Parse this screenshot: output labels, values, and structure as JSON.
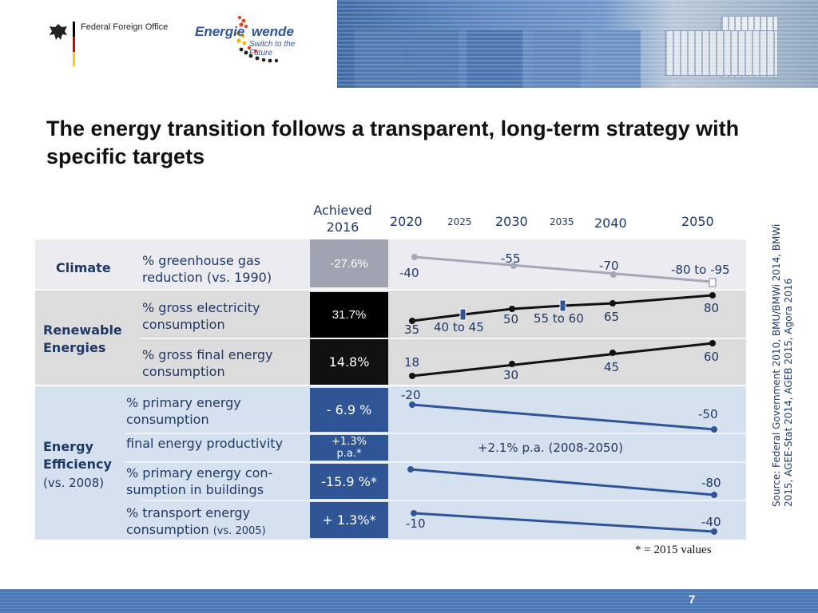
{
  "header": {
    "office_label": "Federal Foreign Office",
    "logo_main": "Energie",
    "logo_wende": "wende",
    "logo_tagline": "Switch to the Future"
  },
  "title": "The energy transition follows a transparent, long-term strategy with specific targets",
  "columns": {
    "achieved": "Achieved 2016",
    "y2020": "2020",
    "y2025": "2025",
    "y2030": "2030",
    "y2035": "2035",
    "y2040": "2040",
    "y2050": "2050"
  },
  "climate": {
    "category": "Climate",
    "desc": "% greenhouse gas reduction (vs. 1990)",
    "achieved": "-27.6%",
    "v2020": "-40",
    "v2030": "-55",
    "v2040": "-70",
    "v2050": "-80 to -95"
  },
  "renewables": {
    "category": "Renewable Energies",
    "electricity_desc": "% gross electricity consumption",
    "electricity_achieved": "31.7%",
    "e2020": "35",
    "e2025": "40 to 45",
    "e2030": "50",
    "e2035": "55 to 60",
    "e2040": "65",
    "e2050": "80",
    "final_desc": "% gross final energy consumption",
    "final_achieved": "14.8%",
    "f2020": "18",
    "f2030": "30",
    "f2040": "45",
    "f2050": "60"
  },
  "efficiency": {
    "category": "Energy Efficiency",
    "category_note": "(vs. 2008)",
    "primary_desc": "% primary energy consumption",
    "primary_achieved": "- 6.9 %",
    "p2020": "-20",
    "p2050": "-50",
    "productivity_desc": "final energy productivity",
    "productivity_achieved": "+1.3% p.a.*",
    "productivity_target": "+2.1% p.a. (2008-2050)",
    "buildings_desc": "% primary energy con- sumption in buildings",
    "buildings_achieved": "-15.9 %*",
    "b2050": "-80",
    "transport_desc": "% transport energy consumption",
    "transport_note": "(vs. 2005)",
    "transport_achieved": "+ 1.3%*",
    "t2020": "-10",
    "t2050": "-40"
  },
  "footnote": "* = 2015 values",
  "source": "Source: Federal Government 2010, BMU/BMWi 2014, BMWi 2015, AGEE-Stat 2014, AGEB 2015, Agora 2016",
  "page_number": "7",
  "colors": {
    "navy": "#1f3864",
    "grey_line": "#a6a6b8",
    "black_line": "#111111",
    "blue_line": "#2f5597",
    "climate_bg": "#ececf0",
    "renew_bg": "#dcdcdc",
    "eff_bg": "#d6e1f0"
  }
}
